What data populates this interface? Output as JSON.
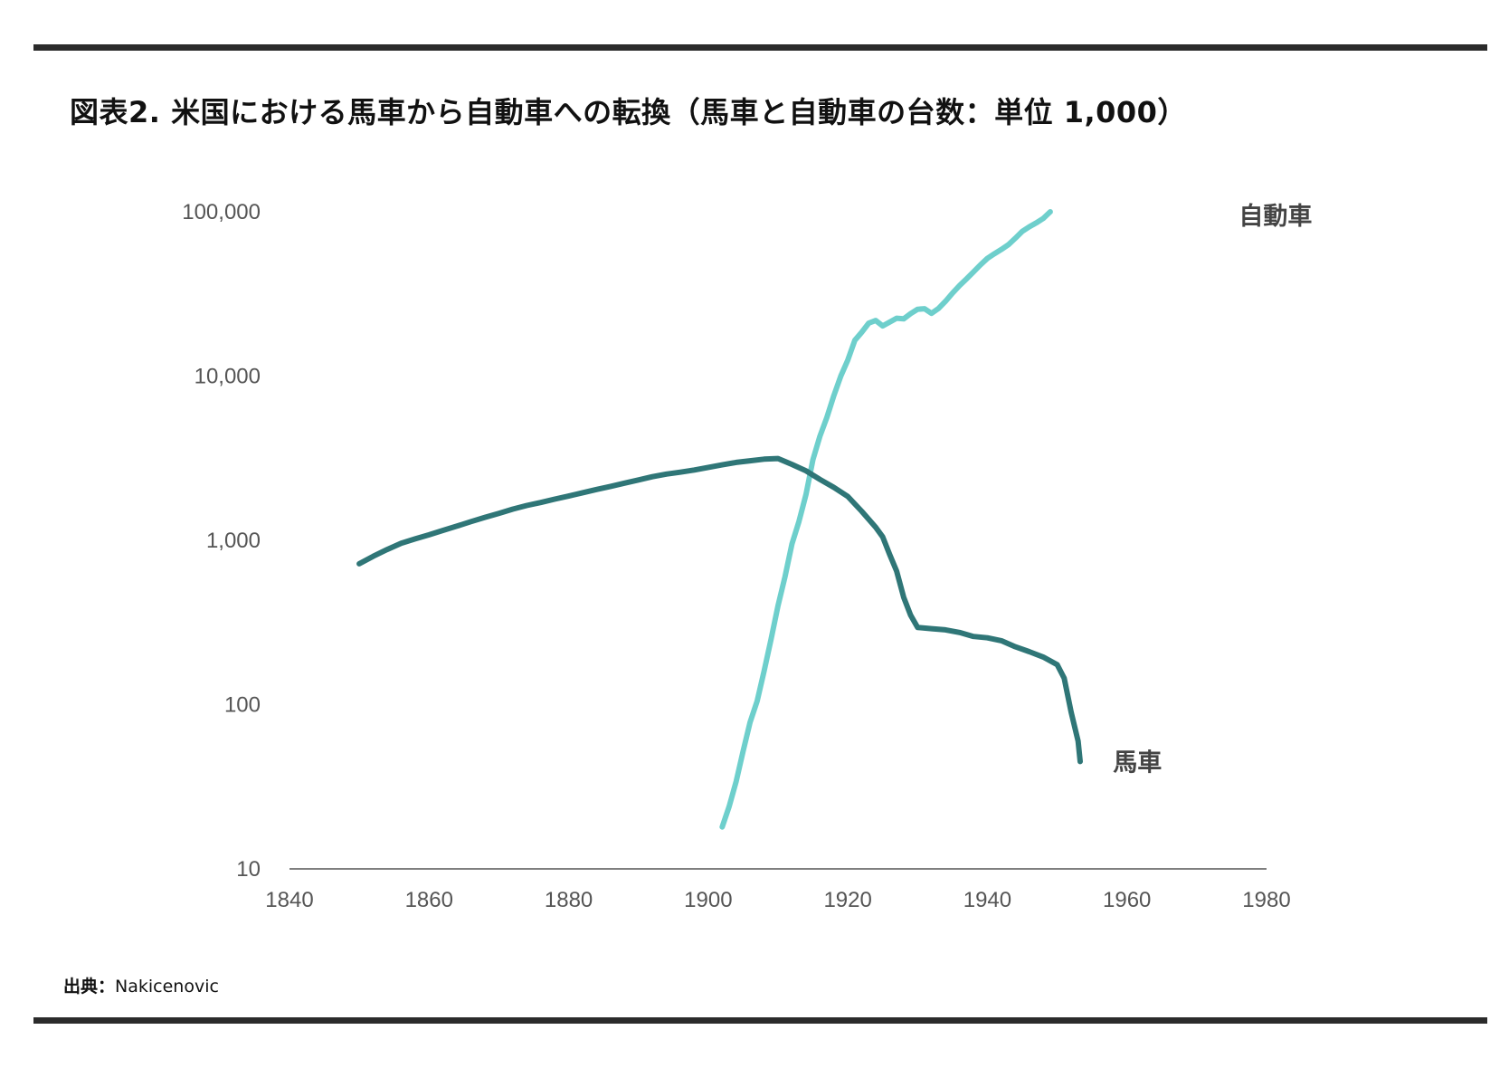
{
  "title": "図表2. 米国における馬車から自動車への転換（馬車と自動車の台数：単位 1,000）",
  "source": {
    "label": "出典：",
    "text": "Nakicenovic"
  },
  "colors": {
    "automobile": "#6ecfcc",
    "horse": "#2f7677",
    "axis": "#555555",
    "rule": "#2b2b2b"
  },
  "chart_data": {
    "type": "line",
    "title": "図表2. 米国における馬車から自動車への転換（馬車と自動車の台数：単位 1,000）",
    "xlabel": "",
    "ylabel": "",
    "xlim": [
      1840,
      1980
    ],
    "ylim": [
      10,
      100000
    ],
    "yscale": "log",
    "grid": false,
    "x_ticks": [
      "1840",
      "1860",
      "1880",
      "1900",
      "1920",
      "1940",
      "1960",
      "1980"
    ],
    "y_ticks": [
      "10",
      "100",
      "1,000",
      "10,000",
      "100,000"
    ],
    "series": [
      {
        "name": "自動車",
        "color": "#6ecfcc",
        "points": [
          [
            1902,
            18
          ],
          [
            1903,
            24
          ],
          [
            1904,
            34
          ],
          [
            1905,
            52
          ],
          [
            1906,
            78
          ],
          [
            1907,
            105
          ],
          [
            1908,
            160
          ],
          [
            1909,
            250
          ],
          [
            1910,
            400
          ],
          [
            1911,
            600
          ],
          [
            1912,
            950
          ],
          [
            1913,
            1300
          ],
          [
            1914,
            1900
          ],
          [
            1915,
            3100
          ],
          [
            1916,
            4300
          ],
          [
            1917,
            5600
          ],
          [
            1918,
            7600
          ],
          [
            1919,
            10000
          ],
          [
            1920,
            12500
          ],
          [
            1921,
            16500
          ],
          [
            1922,
            18500
          ],
          [
            1923,
            21000
          ],
          [
            1924,
            21800
          ],
          [
            1925,
            20200
          ],
          [
            1926,
            21300
          ],
          [
            1927,
            22500
          ],
          [
            1928,
            22300
          ],
          [
            1929,
            24000
          ],
          [
            1930,
            25500
          ],
          [
            1931,
            25700
          ],
          [
            1932,
            24100
          ],
          [
            1933,
            25800
          ],
          [
            1934,
            28500
          ],
          [
            1935,
            32000
          ],
          [
            1936,
            35500
          ],
          [
            1937,
            39000
          ],
          [
            1938,
            43000
          ],
          [
            1939,
            47500
          ],
          [
            1940,
            52000
          ],
          [
            1941,
            55500
          ],
          [
            1942,
            59000
          ],
          [
            1943,
            63000
          ],
          [
            1944,
            69000
          ],
          [
            1945,
            76000
          ],
          [
            1946,
            81000
          ],
          [
            1947,
            85500
          ],
          [
            1948,
            91000
          ],
          [
            1949,
            100000
          ]
        ]
      },
      {
        "name": "馬車",
        "color": "#2f7677",
        "points": [
          [
            1850,
            720
          ],
          [
            1852,
            800
          ],
          [
            1854,
            880
          ],
          [
            1856,
            960
          ],
          [
            1858,
            1020
          ],
          [
            1860,
            1080
          ],
          [
            1862,
            1150
          ],
          [
            1864,
            1220
          ],
          [
            1866,
            1300
          ],
          [
            1868,
            1380
          ],
          [
            1870,
            1460
          ],
          [
            1872,
            1550
          ],
          [
            1874,
            1630
          ],
          [
            1876,
            1700
          ],
          [
            1878,
            1780
          ],
          [
            1880,
            1860
          ],
          [
            1882,
            1950
          ],
          [
            1884,
            2040
          ],
          [
            1886,
            2130
          ],
          [
            1888,
            2230
          ],
          [
            1890,
            2330
          ],
          [
            1892,
            2440
          ],
          [
            1894,
            2530
          ],
          [
            1896,
            2600
          ],
          [
            1898,
            2680
          ],
          [
            1900,
            2780
          ],
          [
            1902,
            2880
          ],
          [
            1904,
            2980
          ],
          [
            1906,
            3050
          ],
          [
            1908,
            3120
          ],
          [
            1910,
            3150
          ],
          [
            1912,
            2900
          ],
          [
            1914,
            2650
          ],
          [
            1916,
            2350
          ],
          [
            1918,
            2100
          ],
          [
            1920,
            1850
          ],
          [
            1922,
            1500
          ],
          [
            1924,
            1200
          ],
          [
            1925,
            1050
          ],
          [
            1926,
            820
          ],
          [
            1927,
            650
          ],
          [
            1928,
            450
          ],
          [
            1929,
            350
          ],
          [
            1930,
            295
          ],
          [
            1932,
            290
          ],
          [
            1934,
            285
          ],
          [
            1936,
            275
          ],
          [
            1938,
            260
          ],
          [
            1940,
            255
          ],
          [
            1942,
            245
          ],
          [
            1944,
            225
          ],
          [
            1946,
            210
          ],
          [
            1948,
            195
          ],
          [
            1950,
            175
          ],
          [
            1951,
            145
          ],
          [
            1952,
            90
          ],
          [
            1953,
            60
          ],
          [
            1953.3,
            45
          ]
        ]
      }
    ],
    "annotations": [
      {
        "text": "自動車",
        "x": 1975,
        "y": 100000
      },
      {
        "text": "馬車",
        "x": 1958,
        "y": 45
      }
    ]
  }
}
